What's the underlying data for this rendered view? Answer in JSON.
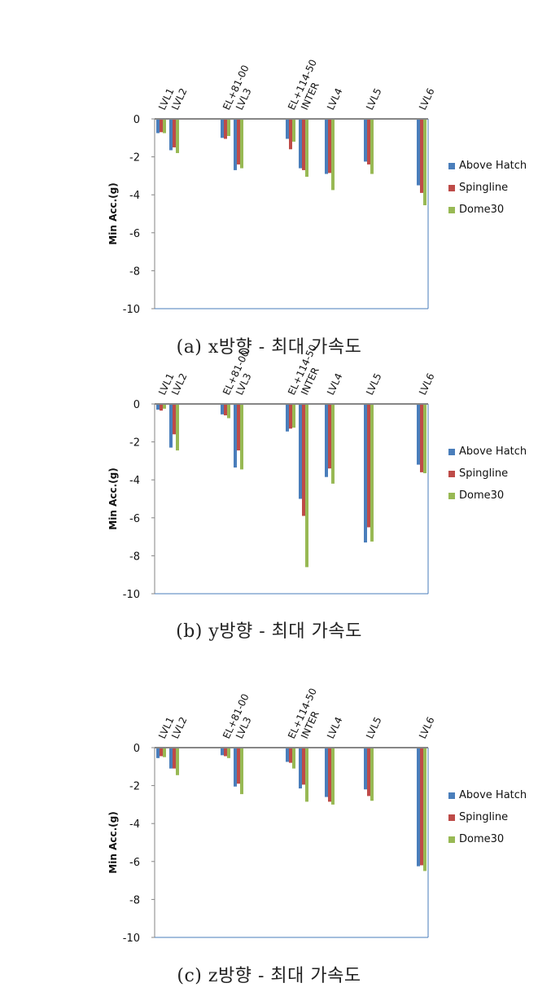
{
  "legend": [
    {
      "name": "Above Hatch",
      "color": "#4a7ebb"
    },
    {
      "name": "Spingline",
      "color": "#be4b48"
    },
    {
      "name": "Dome30",
      "color": "#98b954"
    }
  ],
  "chart_data": [
    {
      "type": "bar",
      "title": "",
      "caption": "(a) x방향 - 최대 가속도",
      "ylabel": "Min Acc.(g)",
      "ylim": [
        -10,
        0
      ],
      "yticks": [
        "0",
        "-2",
        "-4",
        "-6",
        "-8",
        "-10"
      ],
      "categories": [
        "LVL1",
        "LVL2",
        "EL+81-00",
        "LVL3",
        "EL+114-50",
        "INTER",
        "LVL4",
        "LVL5",
        "LVL6"
      ],
      "series": [
        {
          "name": "Above Hatch",
          "values": [
            -0.75,
            -1.65,
            -1.0,
            -2.7,
            -1.05,
            -2.6,
            -2.9,
            -2.25,
            -3.5
          ]
        },
        {
          "name": "Spingline",
          "values": [
            -0.7,
            -1.5,
            -1.05,
            -2.4,
            -1.6,
            -2.7,
            -2.85,
            -2.4,
            -3.9
          ]
        },
        {
          "name": "Dome30",
          "values": [
            -0.75,
            -1.8,
            -0.9,
            -2.6,
            -1.2,
            -3.05,
            -3.75,
            -2.9,
            -4.55
          ]
        }
      ]
    },
    {
      "type": "bar",
      "title": "",
      "caption": "(b) y방향 - 최대 가속도",
      "ylabel": "Min Acc.(g)",
      "ylim": [
        -10,
        0
      ],
      "yticks": [
        "0",
        "-2",
        "-4",
        "-6",
        "-8",
        "-10"
      ],
      "categories": [
        "LVL1",
        "LVL2",
        "EL+81-00",
        "LVL3",
        "EL+114-50",
        "INTER",
        "LVL4",
        "LVL5",
        "LVL6"
      ],
      "series": [
        {
          "name": "Above Hatch",
          "values": [
            -0.3,
            -2.3,
            -0.55,
            -3.35,
            -1.45,
            -5.0,
            -3.85,
            -7.3,
            -3.2
          ]
        },
        {
          "name": "Spingline",
          "values": [
            -0.35,
            -1.6,
            -0.6,
            -2.45,
            -1.3,
            -5.9,
            -3.4,
            -6.5,
            -3.6
          ]
        },
        {
          "name": "Dome30",
          "values": [
            -0.25,
            -2.45,
            -0.75,
            -3.45,
            -1.25,
            -8.6,
            -4.2,
            -7.25,
            -3.65
          ]
        }
      ]
    },
    {
      "type": "bar",
      "title": "",
      "caption": "(c) z방향 - 최대 가속도",
      "ylabel": "Min Acc.(g)",
      "ylim": [
        -10,
        0
      ],
      "yticks": [
        "0",
        "-2",
        "-4",
        "-6",
        "-8",
        "-10"
      ],
      "categories": [
        "LVL1",
        "LVL2",
        "EL+81-00",
        "LVL3",
        "EL+114-50",
        "INTER",
        "LVL4",
        "LVL5",
        "LVL6"
      ],
      "series": [
        {
          "name": "Above Hatch",
          "values": [
            -0.55,
            -1.1,
            -0.4,
            -2.05,
            -0.75,
            -2.15,
            -2.6,
            -2.2,
            -6.25
          ]
        },
        {
          "name": "Spingline",
          "values": [
            -0.45,
            -1.1,
            -0.45,
            -1.9,
            -0.8,
            -1.95,
            -2.85,
            -2.55,
            -6.2
          ]
        },
        {
          "name": "Dome30",
          "values": [
            -0.5,
            -1.45,
            -0.55,
            -2.45,
            -1.1,
            -2.85,
            -3.0,
            -2.8,
            -6.5
          ]
        }
      ]
    }
  ]
}
